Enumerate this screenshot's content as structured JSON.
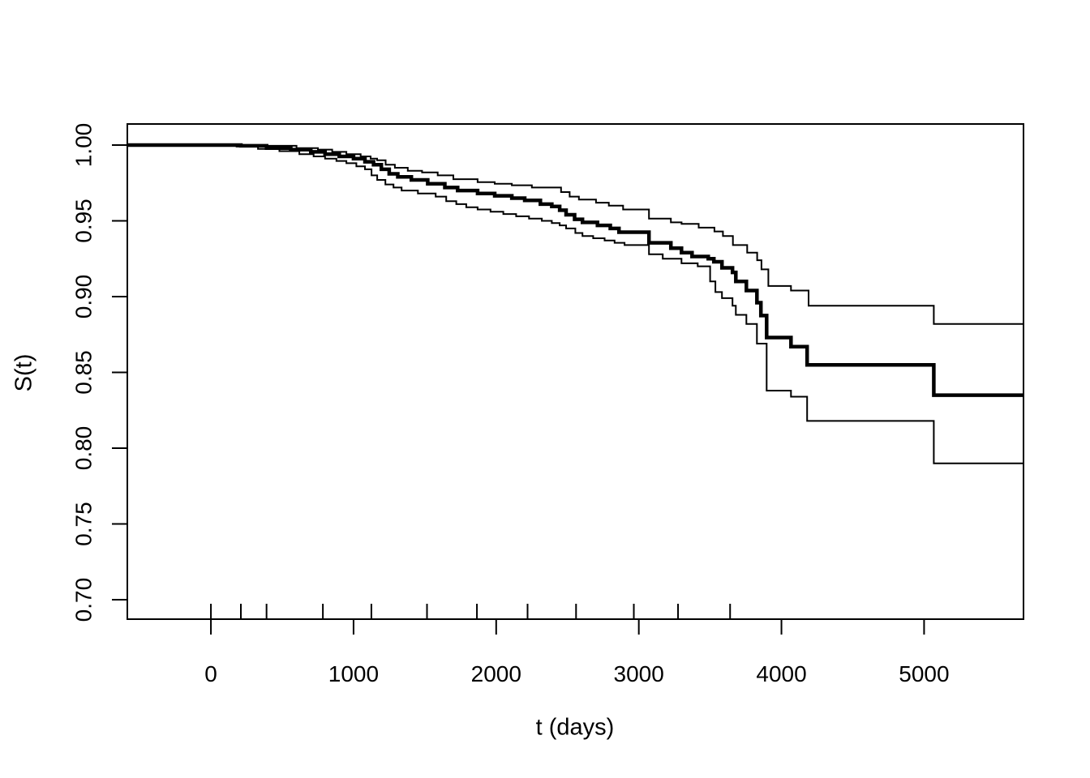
{
  "figure": {
    "background": "#ffffff",
    "ink_color": "#000000"
  },
  "chart_data": {
    "type": "line",
    "subtype": "kaplan-meier-step-survival-with-confidence-bands",
    "title": "",
    "xlabel": "t (days)",
    "ylabel": "S(t)",
    "xlim": [
      -586,
      5697
    ],
    "ylim": [
      0.6872,
      1.0139
    ],
    "x_ticks": [
      0,
      1000,
      2000,
      3000,
      4000,
      5000
    ],
    "y_ticks": [
      0.7,
      0.75,
      0.8,
      0.85,
      0.9,
      0.95,
      1.0
    ],
    "grid": false,
    "legend": "none",
    "line_color": "#000000",
    "rug_ticks_t": [
      0,
      210,
      390,
      785,
      1125,
      1515,
      1865,
      2220,
      2560,
      2965,
      3275,
      3640
    ],
    "series": [
      {
        "name": "survival_estimate",
        "role": "estimate",
        "line_width": 4.5,
        "start_value": 1.0,
        "steps": [
          [
            210,
            0.9995
          ],
          [
            390,
            0.998
          ],
          [
            560,
            0.997
          ],
          [
            700,
            0.9955
          ],
          [
            800,
            0.994
          ],
          [
            900,
            0.9925
          ],
          [
            1000,
            0.991
          ],
          [
            1080,
            0.989
          ],
          [
            1140,
            0.987
          ],
          [
            1195,
            0.984
          ],
          [
            1250,
            0.981
          ],
          [
            1310,
            0.979
          ],
          [
            1405,
            0.977
          ],
          [
            1520,
            0.9745
          ],
          [
            1640,
            0.972
          ],
          [
            1730,
            0.97
          ],
          [
            1870,
            0.968
          ],
          [
            1990,
            0.9665
          ],
          [
            2110,
            0.965
          ],
          [
            2200,
            0.9635
          ],
          [
            2310,
            0.961
          ],
          [
            2390,
            0.9595
          ],
          [
            2445,
            0.957
          ],
          [
            2490,
            0.954
          ],
          [
            2550,
            0.951
          ],
          [
            2605,
            0.949
          ],
          [
            2710,
            0.947
          ],
          [
            2800,
            0.945
          ],
          [
            2861,
            0.9425
          ],
          [
            3071,
            0.9355
          ],
          [
            3225,
            0.932
          ],
          [
            3299,
            0.929
          ],
          [
            3373,
            0.9265
          ],
          [
            3487,
            0.925
          ],
          [
            3526,
            0.923
          ],
          [
            3583,
            0.919
          ],
          [
            3657,
            0.916
          ],
          [
            3680,
            0.91
          ],
          [
            3754,
            0.904
          ],
          [
            3828,
            0.896
          ],
          [
            3856,
            0.8875
          ],
          [
            3896,
            0.873
          ],
          [
            4067,
            0.867
          ],
          [
            4180,
            0.855
          ],
          [
            5068,
            0.835
          ]
        ]
      },
      {
        "name": "upper_confidence_band",
        "role": "upper_ci",
        "line_width": 2,
        "start_value": 1.0,
        "steps": [
          [
            390,
            0.9995
          ],
          [
            600,
            0.998
          ],
          [
            750,
            0.997
          ],
          [
            850,
            0.9955
          ],
          [
            950,
            0.994
          ],
          [
            1050,
            0.9925
          ],
          [
            1120,
            0.991
          ],
          [
            1165,
            0.99
          ],
          [
            1225,
            0.987
          ],
          [
            1290,
            0.985
          ],
          [
            1380,
            0.983
          ],
          [
            1480,
            0.982
          ],
          [
            1590,
            0.98
          ],
          [
            1700,
            0.9775
          ],
          [
            1870,
            0.9755
          ],
          [
            1990,
            0.9745
          ],
          [
            2110,
            0.9735
          ],
          [
            2250,
            0.972
          ],
          [
            2455,
            0.969
          ],
          [
            2515,
            0.966
          ],
          [
            2580,
            0.964
          ],
          [
            2700,
            0.962
          ],
          [
            2790,
            0.96
          ],
          [
            2890,
            0.9575
          ],
          [
            3071,
            0.9515
          ],
          [
            3225,
            0.949
          ],
          [
            3300,
            0.948
          ],
          [
            3420,
            0.9455
          ],
          [
            3530,
            0.943
          ],
          [
            3590,
            0.94
          ],
          [
            3660,
            0.934
          ],
          [
            3760,
            0.929
          ],
          [
            3830,
            0.924
          ],
          [
            3860,
            0.918
          ],
          [
            3908,
            0.907
          ],
          [
            4067,
            0.904
          ],
          [
            4190,
            0.894
          ],
          [
            5068,
            0.882
          ]
        ]
      },
      {
        "name": "lower_confidence_band",
        "role": "lower_ci",
        "line_width": 2,
        "start_value": 1.0,
        "steps": [
          [
            180,
            0.999
          ],
          [
            330,
            0.9975
          ],
          [
            480,
            0.996
          ],
          [
            620,
            0.994
          ],
          [
            720,
            0.9925
          ],
          [
            800,
            0.991
          ],
          [
            880,
            0.9895
          ],
          [
            950,
            0.988
          ],
          [
            1020,
            0.986
          ],
          [
            1080,
            0.984
          ],
          [
            1126,
            0.98
          ],
          [
            1166,
            0.977
          ],
          [
            1223,
            0.974
          ],
          [
            1280,
            0.972
          ],
          [
            1337,
            0.97
          ],
          [
            1451,
            0.968
          ],
          [
            1576,
            0.966
          ],
          [
            1650,
            0.963
          ],
          [
            1720,
            0.961
          ],
          [
            1790,
            0.959
          ],
          [
            1870,
            0.9575
          ],
          [
            1960,
            0.956
          ],
          [
            2050,
            0.9545
          ],
          [
            2140,
            0.953
          ],
          [
            2230,
            0.9515
          ],
          [
            2320,
            0.95
          ],
          [
            2390,
            0.9485
          ],
          [
            2445,
            0.947
          ],
          [
            2490,
            0.945
          ],
          [
            2555,
            0.942
          ],
          [
            2605,
            0.94
          ],
          [
            2680,
            0.9385
          ],
          [
            2760,
            0.937
          ],
          [
            2830,
            0.9355
          ],
          [
            2900,
            0.934
          ],
          [
            3071,
            0.928
          ],
          [
            3168,
            0.925
          ],
          [
            3299,
            0.922
          ],
          [
            3413,
            0.92
          ],
          [
            3500,
            0.91
          ],
          [
            3537,
            0.903
          ],
          [
            3583,
            0.899
          ],
          [
            3657,
            0.894
          ],
          [
            3680,
            0.888
          ],
          [
            3754,
            0.882
          ],
          [
            3828,
            0.869
          ],
          [
            3896,
            0.838
          ],
          [
            4067,
            0.834
          ],
          [
            4180,
            0.818
          ],
          [
            5068,
            0.79
          ]
        ]
      }
    ]
  }
}
